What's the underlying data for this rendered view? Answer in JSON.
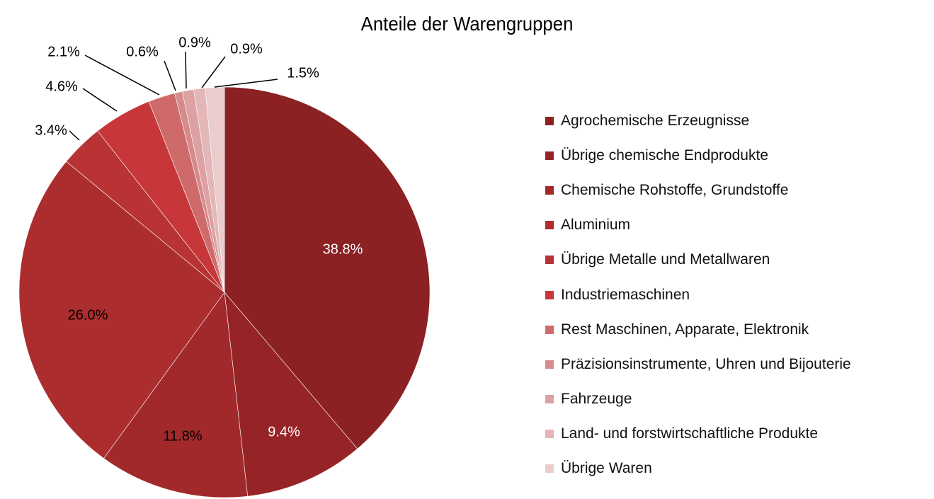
{
  "chart_data": {
    "type": "pie",
    "title": "Anteile der Warengruppen",
    "legend_position": "right",
    "slices": [
      {
        "name": "Agrochemische Erzeugnisse",
        "value": 38.8,
        "label": "38.8%",
        "color": "#8b2123"
      },
      {
        "name": "Übrige chemische Endprodukte",
        "value": 9.4,
        "label": "9.4%",
        "color": "#962426"
      },
      {
        "name": "Chemische Rohstoffe, Grundstoffe",
        "value": 11.8,
        "label": "11.8%",
        "color": "#a1292b"
      },
      {
        "name": "Aluminium",
        "value": 26.0,
        "label": "26.0%",
        "color": "#ac2d2e"
      },
      {
        "name": "Übrige Metalle und Metallwaren",
        "value": 3.4,
        "label": "3.4%",
        "color": "#b93234"
      },
      {
        "name": "Industriemaschinen",
        "value": 4.6,
        "label": "4.6%",
        "color": "#c73638"
      },
      {
        "name": "Rest Maschinen, Apparate, Elektronik",
        "value": 2.1,
        "label": "2.1%",
        "color": "#cf6a6b"
      },
      {
        "name": "Präzisionsinstrumente, Uhren und Bijouterie",
        "value": 0.6,
        "label": "0.6%",
        "color": "#d68a8b"
      },
      {
        "name": "Fahrzeuge",
        "value": 0.9,
        "label": "0.9%",
        "color": "#dca1a2"
      },
      {
        "name": "Land- und forstwirtschaftliche Produkte",
        "value": 0.9,
        "label": "0.9%",
        "color": "#e3b6b7"
      },
      {
        "name": "Übrige Waren",
        "value": 1.5,
        "label": "1.5%",
        "color": "#eacccd"
      }
    ]
  }
}
